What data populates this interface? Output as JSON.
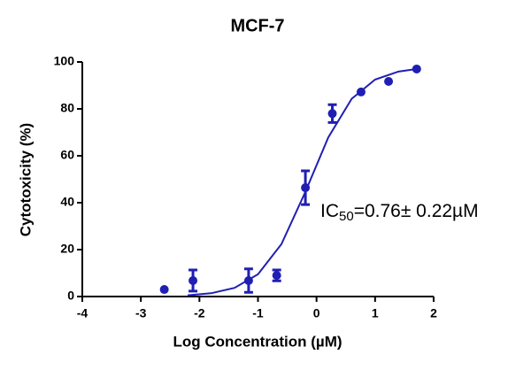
{
  "chart_data": {
    "type": "scatter",
    "title": "MCF-7",
    "x_label": "Log Concentration (µM)",
    "y_label": "Cytotoxicity (%)",
    "xlim": [
      -4,
      2
    ],
    "xticks": [
      -4,
      -3,
      -2,
      -1,
      0,
      1,
      2
    ],
    "ylim": [
      0,
      100
    ],
    "yticks": [
      0,
      20,
      40,
      60,
      80,
      100
    ],
    "annotation": {
      "prefix": "IC",
      "subscript": "50",
      "suffix": "=0.76± 0.22µM"
    },
    "series": [
      {
        "type": "scatter",
        "color": "#1f1fb4",
        "x": [
          -2.6,
          -2.11,
          -1.16,
          -0.68,
          -0.19,
          0.27,
          0.76,
          1.23,
          1.71
        ],
        "values": [
          3.0,
          6.8,
          6.8,
          9.0,
          46.4,
          78.0,
          87.2,
          91.7,
          97.0
        ],
        "errors": [
          null,
          4.5,
          5.0,
          2.3,
          7.2,
          3.8,
          null,
          null,
          null
        ]
      },
      {
        "type": "line",
        "color": "#1f1fb4",
        "x": [
          -2.2,
          -1.8,
          -1.4,
          -1.0,
          -0.6,
          -0.2,
          0.2,
          0.6,
          1.0,
          1.4,
          1.7
        ],
        "values": [
          0.5,
          1.4,
          3.7,
          9.5,
          22.3,
          44.1,
          67.8,
          84.3,
          92.5,
          95.9,
          97.0
        ]
      }
    ]
  }
}
